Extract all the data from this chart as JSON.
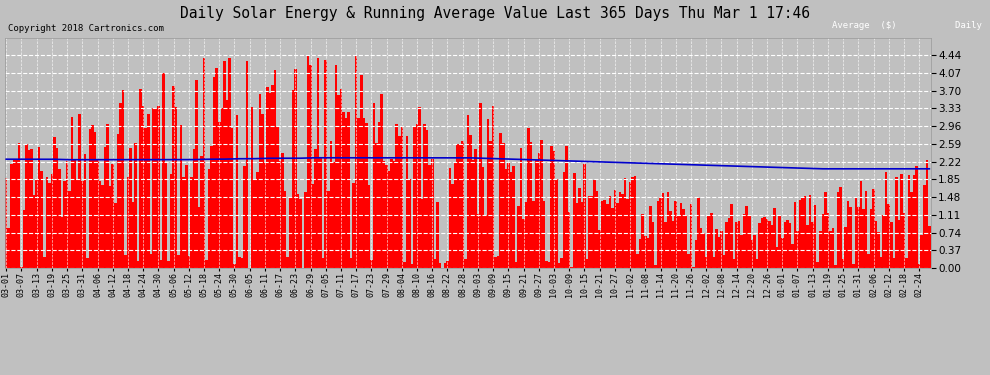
{
  "title": "Daily Solar Energy & Running Average Value Last 365 Days Thu Mar 1 17:46",
  "copyright": "Copyright 2018 Cartronics.com",
  "background_color": "#c0c0c0",
  "plot_background": "#c0c0c0",
  "bar_color": "#ff0000",
  "avg_color": "#0000cc",
  "grid_color": "#ffffff",
  "ylim": [
    0.0,
    4.807
  ],
  "yticks": [
    0.0,
    0.37,
    0.74,
    1.11,
    1.48,
    1.85,
    2.22,
    2.59,
    2.96,
    3.33,
    3.7,
    4.07,
    4.44
  ],
  "legend_avg_bg": "#0000cc",
  "legend_daily_bg": "#cc0000",
  "legend_text_color": "#ffffff",
  "avg_line": [
    2.27,
    2.27,
    2.27,
    2.27,
    2.26,
    2.26,
    2.26,
    2.26,
    2.26,
    2.26,
    2.26,
    2.26,
    2.26,
    2.27,
    2.27,
    2.28,
    2.28,
    2.29,
    2.29,
    2.29,
    2.3,
    2.3,
    2.3,
    2.3,
    2.3,
    2.3,
    2.3,
    2.3,
    2.3,
    2.3,
    2.3,
    2.29,
    2.28,
    2.27,
    2.26,
    2.25,
    2.24,
    2.23,
    2.22,
    2.21,
    2.2,
    2.19,
    2.18,
    2.17,
    2.16,
    2.15,
    2.14,
    2.13,
    2.12,
    2.11,
    2.1,
    2.09,
    2.08,
    2.07,
    2.07,
    2.07,
    2.07,
    2.07,
    2.07,
    2.07,
    2.07
  ],
  "x_labels": [
    "03-01",
    "03-07",
    "03-13",
    "03-19",
    "03-25",
    "03-31",
    "04-06",
    "04-12",
    "04-18",
    "04-24",
    "04-30",
    "05-06",
    "05-12",
    "05-18",
    "05-24",
    "05-30",
    "06-05",
    "06-11",
    "06-17",
    "06-23",
    "06-29",
    "07-05",
    "07-11",
    "07-17",
    "07-23",
    "07-29",
    "08-04",
    "08-10",
    "08-16",
    "08-22",
    "08-28",
    "09-03",
    "09-09",
    "09-15",
    "09-21",
    "09-27",
    "10-03",
    "10-09",
    "10-15",
    "10-21",
    "10-27",
    "11-02",
    "11-08",
    "11-14",
    "11-20",
    "11-26",
    "12-02",
    "12-08",
    "12-14",
    "12-20",
    "12-26",
    "01-01",
    "01-07",
    "01-13",
    "01-19",
    "01-25",
    "01-31",
    "02-06",
    "02-12",
    "02-18",
    "02-24"
  ]
}
